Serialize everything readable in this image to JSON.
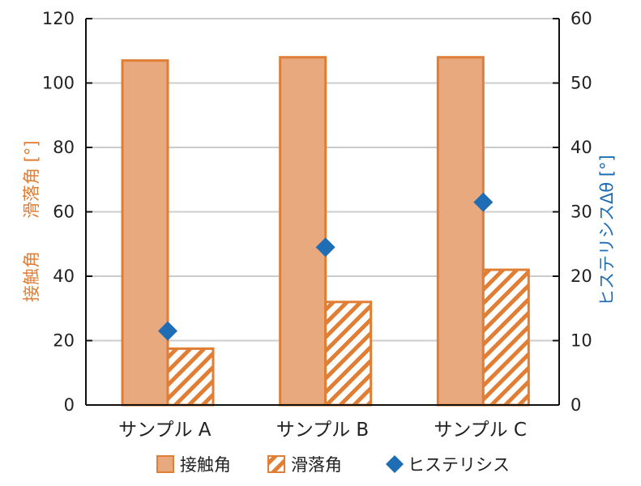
{
  "colors": {
    "contact": "#E8A97F",
    "contact_border": "#E07E35",
    "sliding_stripe": "#E07E35",
    "hysteresis": "#1F6EB5",
    "y1_label": "#E07E35",
    "y2_label": "#1F6EB5",
    "grid": "#cccccc",
    "axis": "#111111"
  },
  "chart_data": {
    "type": "bar",
    "categories": [
      "サンプル A",
      "サンプル B",
      "サンプル C"
    ],
    "series": [
      {
        "name": "接触角",
        "kind": "bar",
        "axis": "y1",
        "pattern": "solid",
        "values": [
          107,
          108,
          108
        ]
      },
      {
        "name": "滑落角",
        "kind": "bar",
        "axis": "y1",
        "pattern": "hatched",
        "values": [
          17.5,
          32,
          42
        ]
      },
      {
        "name": "ヒステリシス",
        "kind": "scatter",
        "axis": "y2",
        "marker": "diamond",
        "values": [
          11.5,
          24.5,
          31.5
        ]
      }
    ],
    "ylabel_left_parts": [
      "接触角",
      "滑落角 [°]"
    ],
    "ylabel_right": "ヒステリシスΔθ [°]",
    "ylim": [
      0,
      120
    ],
    "y2lim": [
      0,
      60
    ],
    "yticks": [
      0,
      20,
      40,
      60,
      80,
      100,
      120
    ],
    "y2ticks": [
      0,
      10,
      20,
      30,
      40,
      50,
      60
    ],
    "grid": true,
    "legend_position": "bottom"
  }
}
